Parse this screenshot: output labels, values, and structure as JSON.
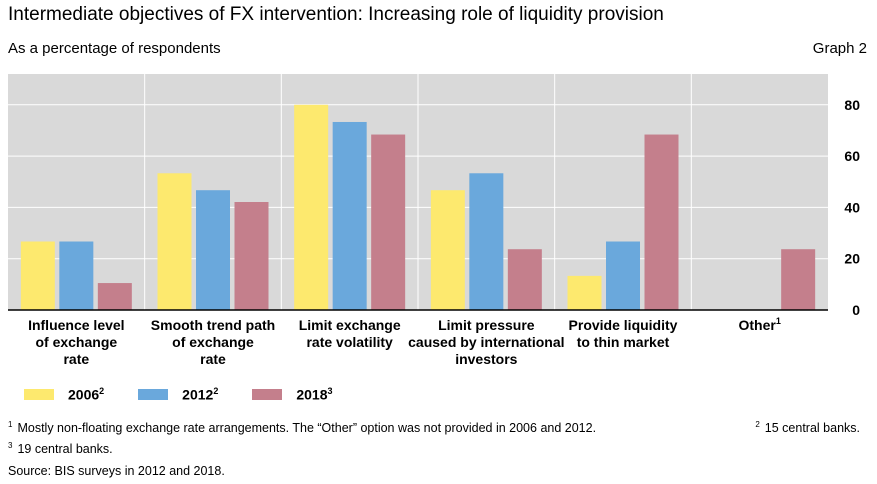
{
  "title": "Intermediate objectives of FX intervention: Increasing role of liquidity provision",
  "subtitle": "As a percentage of respondents",
  "graph_number": "Graph 2",
  "legend": [
    {
      "label": "2006",
      "sup": "2",
      "color": "#fde96e"
    },
    {
      "label": "2012",
      "sup": "2",
      "color": "#6aa8dc"
    },
    {
      "label": "2018",
      "sup": "3",
      "color": "#c47f8c"
    }
  ],
  "footnotes": {
    "line1_sup": "1",
    "line1": "Mostly non-floating exchange rate arrangements. The “Other” option was not provided in 2006 and 2012.",
    "line1b_sup": "2",
    "line1b": "15 central banks.",
    "line2_sup": "3",
    "line2": "19 central banks."
  },
  "source": "Source: BIS surveys in 2012 and 2018.",
  "chart_data": {
    "type": "bar",
    "categories": [
      {
        "lines": [
          "Influence level",
          "of exchange",
          "rate"
        ],
        "sup": ""
      },
      {
        "lines": [
          "Smooth trend path",
          "of exchange",
          "rate"
        ],
        "sup": ""
      },
      {
        "lines": [
          "Limit exchange",
          "rate volatility"
        ],
        "sup": ""
      },
      {
        "lines": [
          "Limit pressure",
          "caused by international",
          "investors"
        ],
        "sup": ""
      },
      {
        "lines": [
          "Provide liquidity",
          "to thin market"
        ],
        "sup": ""
      },
      {
        "lines": [
          "Other"
        ],
        "sup": "1"
      }
    ],
    "series": [
      {
        "name": "2006",
        "values": [
          26.7,
          53.3,
          80,
          46.7,
          13.3,
          null
        ]
      },
      {
        "name": "2012",
        "values": [
          26.7,
          46.7,
          73.3,
          53.3,
          26.7,
          null
        ]
      },
      {
        "name": "2018",
        "values": [
          10.5,
          42.1,
          68.4,
          23.7,
          68.4,
          23.7
        ]
      }
    ],
    "y_ticks": [
      "0",
      "20",
      "40",
      "60",
      "80"
    ],
    "ylim": [
      0,
      92
    ],
    "grid": true,
    "background": "#d9d9d9"
  }
}
